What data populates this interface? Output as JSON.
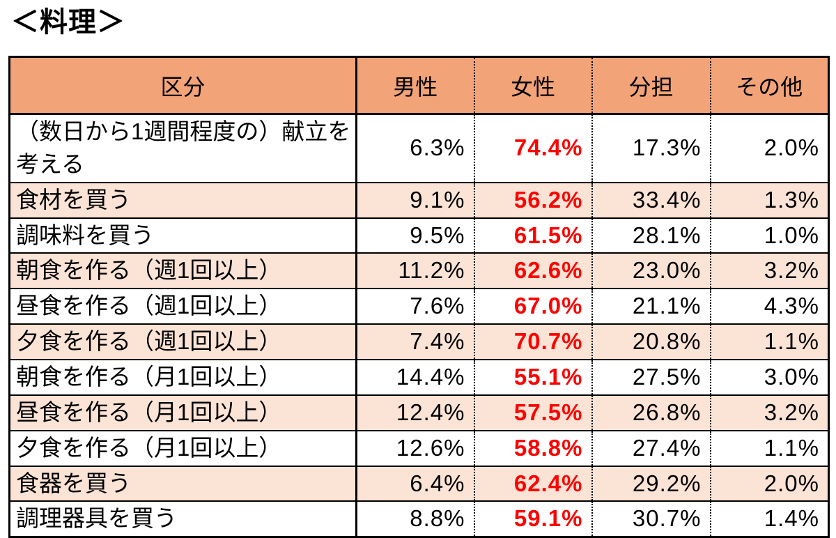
{
  "page_title": "＜料理＞",
  "colors": {
    "header_bg": "#F2A377",
    "alt_row_bg": "#FBE3D6",
    "highlight_text": "#FF0000",
    "border": "#000000"
  },
  "chart_data": {
    "type": "table",
    "title": "＜料理＞",
    "columns": [
      "区分",
      "男性",
      "女性",
      "分担",
      "その他"
    ],
    "unit": "%",
    "highlight_column": "女性",
    "highlight_style": "red bold",
    "row_striping": "alternate rows shaded peach starting from second data row",
    "rows": [
      [
        "（数日から1週間程度の）献立を考える",
        6.3,
        74.4,
        17.3,
        2.0
      ],
      [
        "食材を買う",
        9.1,
        56.2,
        33.4,
        1.3
      ],
      [
        "調味料を買う",
        9.5,
        61.5,
        28.1,
        1.0
      ],
      [
        "朝食を作る（週1回以上）",
        11.2,
        62.6,
        23.0,
        3.2
      ],
      [
        "昼食を作る（週1回以上）",
        7.6,
        67.0,
        21.1,
        4.3
      ],
      [
        "夕食を作る（週1回以上）",
        7.4,
        70.7,
        20.8,
        1.1
      ],
      [
        "朝食を作る（月1回以上）",
        14.4,
        55.1,
        27.5,
        3.0
      ],
      [
        "昼食を作る（月1回以上）",
        12.4,
        57.5,
        26.8,
        3.2
      ],
      [
        "夕食を作る（月1回以上）",
        12.6,
        58.8,
        27.4,
        1.1
      ],
      [
        "食器を買う",
        6.4,
        62.4,
        29.2,
        2.0
      ],
      [
        "調理器具を買う",
        8.8,
        59.1,
        30.7,
        1.4
      ]
    ]
  }
}
